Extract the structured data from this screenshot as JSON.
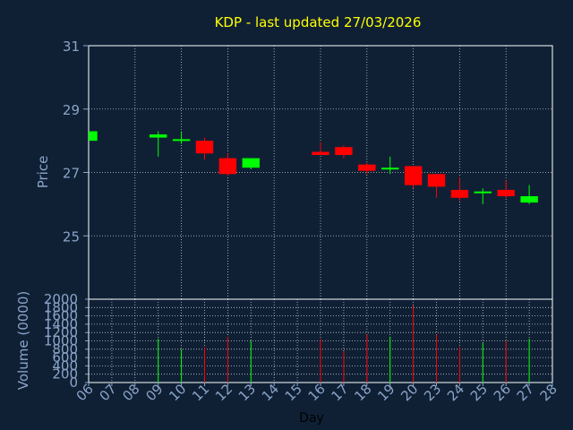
{
  "chart_data": {
    "type": "candlestick",
    "title": "KDP - last updated 27/03/2026",
    "price_panel": {
      "ylabel": "Price",
      "ylim": [
        23,
        31
      ],
      "yticks": [
        "25",
        "27",
        "29",
        "31"
      ]
    },
    "volume_panel": {
      "ylabel": "Volume (0000)",
      "ylim": [
        0,
        2000
      ],
      "yticks": [
        "0",
        "200",
        "400",
        "600",
        "800",
        "1000",
        "1200",
        "1400",
        "1600",
        "1800",
        "2000"
      ]
    },
    "xlabel": "Day",
    "x_ticks": [
      "06",
      "07",
      "08",
      "09",
      "10",
      "11",
      "12",
      "13",
      "14",
      "15",
      "16",
      "17",
      "18",
      "19",
      "20",
      "23",
      "24",
      "25",
      "26",
      "27",
      "28"
    ],
    "up_color": "#00ff00",
    "down_color": "#ff0000",
    "candles": [
      {
        "day": "06",
        "open": 28.0,
        "high": 28.3,
        "low": 28.0,
        "close": 28.3,
        "volume": 0
      },
      {
        "day": "09",
        "open": 28.1,
        "high": 28.3,
        "low": 27.5,
        "close": 28.2,
        "volume": 1050
      },
      {
        "day": "10",
        "open": 28.0,
        "high": 28.3,
        "low": 27.9,
        "close": 28.05,
        "volume": 800
      },
      {
        "day": "11",
        "open": 28.0,
        "high": 28.1,
        "low": 27.4,
        "close": 27.6,
        "volume": 850
      },
      {
        "day": "12",
        "open": 27.45,
        "high": 27.6,
        "low": 26.9,
        "close": 26.95,
        "volume": 1100
      },
      {
        "day": "13",
        "open": 27.15,
        "high": 27.45,
        "low": 27.1,
        "close": 27.45,
        "volume": 1000
      },
      {
        "day": "16",
        "open": 27.65,
        "high": 27.95,
        "low": 27.55,
        "close": 27.55,
        "volume": 1050
      },
      {
        "day": "17",
        "open": 27.8,
        "high": 27.85,
        "low": 27.45,
        "close": 27.55,
        "volume": 750
      },
      {
        "day": "18",
        "open": 27.25,
        "high": 27.3,
        "low": 26.95,
        "close": 27.05,
        "volume": 1150
      },
      {
        "day": "19",
        "open": 27.1,
        "high": 27.5,
        "low": 26.95,
        "close": 27.15,
        "volume": 1100
      },
      {
        "day": "20",
        "open": 27.2,
        "high": 27.2,
        "low": 26.5,
        "close": 26.6,
        "volume": 1850
      },
      {
        "day": "23",
        "open": 26.95,
        "high": 26.95,
        "low": 26.2,
        "close": 26.55,
        "volume": 1150
      },
      {
        "day": "24",
        "open": 26.45,
        "high": 26.85,
        "low": 26.1,
        "close": 26.2,
        "volume": 850
      },
      {
        "day": "25",
        "open": 26.35,
        "high": 26.5,
        "low": 26.0,
        "close": 26.4,
        "volume": 950
      },
      {
        "day": "26",
        "open": 26.45,
        "high": 26.75,
        "low": 26.2,
        "close": 26.25,
        "volume": 1000
      },
      {
        "day": "27",
        "open": 26.05,
        "high": 26.6,
        "low": 26.0,
        "close": 26.25,
        "volume": 1050
      }
    ]
  }
}
